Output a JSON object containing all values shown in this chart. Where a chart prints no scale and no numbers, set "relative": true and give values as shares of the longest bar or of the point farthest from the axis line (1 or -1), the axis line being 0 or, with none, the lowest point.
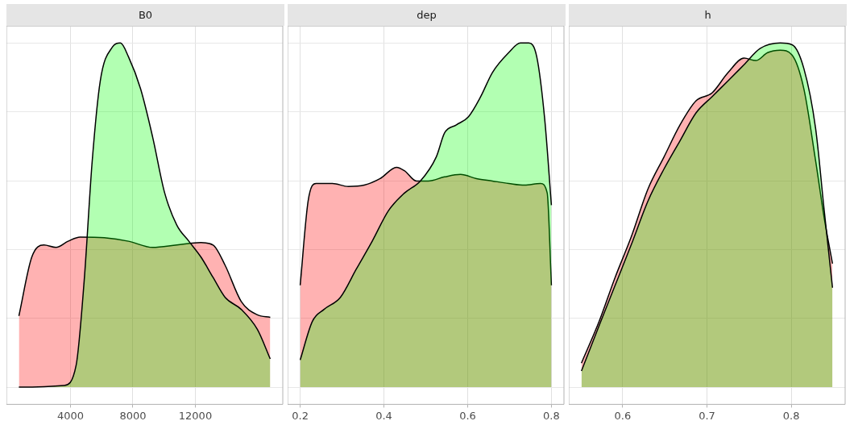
{
  "chart_data": [
    {
      "type": "area",
      "title": "B0",
      "relative": true,
      "xlim": [
        -100,
        17600
      ],
      "xticks": [
        4000,
        8000,
        12000
      ],
      "grid": true,
      "tick_labels": "x",
      "legend": false,
      "series": [
        {
          "color": "#ff0000",
          "x": [
            697,
            1523,
            2297,
            3071,
            3845,
            4619,
            6167,
            7716,
            9263,
            10811,
            12359,
            13133,
            13907,
            14939,
            15971,
            16797
          ],
          "values": [
            0.207,
            0.378,
            0.413,
            0.406,
            0.424,
            0.436,
            0.434,
            0.424,
            0.406,
            0.413,
            0.42,
            0.413,
            0.354,
            0.249,
            0.21,
            0.203
          ]
        },
        {
          "color": "#00ff00",
          "x": [
            697,
            3587,
            4361,
            4877,
            5393,
            5910,
            6683,
            7199,
            7716,
            8490,
            9263,
            10037,
            10811,
            11585,
            12359,
            13133,
            13907,
            14939,
            15971,
            16797
          ],
          "values": [
            0,
            0.005,
            0.063,
            0.308,
            0.657,
            0.89,
            0.988,
            1,
            0.96,
            0.867,
            0.727,
            0.564,
            0.471,
            0.424,
            0.378,
            0.319,
            0.261,
            0.226,
            0.168,
            0.082
          ]
        }
      ]
    },
    {
      "type": "area",
      "title": "dep",
      "relative": true,
      "xlim": [
        0.17,
        0.83
      ],
      "xticks": [
        0.2,
        0.4,
        0.6,
        0.8
      ],
      "grid": true,
      "tick_labels": "x",
      "legend": false,
      "series": [
        {
          "color": "#ff0000",
          "x": [
            0.2,
            0.219,
            0.238,
            0.277,
            0.315,
            0.353,
            0.391,
            0.43,
            0.449,
            0.478,
            0.506,
            0.545,
            0.583,
            0.621,
            0.659,
            0.698,
            0.736,
            0.774,
            0.79,
            0.8
          ],
          "values": [
            0.296,
            0.541,
            0.592,
            0.592,
            0.583,
            0.587,
            0.606,
            0.639,
            0.629,
            0.599,
            0.599,
            0.611,
            0.618,
            0.606,
            0.599,
            0.592,
            0.587,
            0.592,
            0.564,
            0.296
          ]
        },
        {
          "color": "#00ff00",
          "x": [
            0.2,
            0.229,
            0.257,
            0.296,
            0.334,
            0.372,
            0.411,
            0.449,
            0.487,
            0.525,
            0.545,
            0.573,
            0.602,
            0.631,
            0.659,
            0.698,
            0.726,
            0.746,
            0.765,
            0.784,
            0.8
          ],
          "values": [
            0.079,
            0.191,
            0.226,
            0.261,
            0.343,
            0.424,
            0.513,
            0.564,
            0.599,
            0.669,
            0.739,
            0.762,
            0.786,
            0.844,
            0.914,
            0.972,
            1,
            1,
            0.96,
            0.779,
            0.529
          ]
        }
      ]
    },
    {
      "type": "area",
      "title": "h",
      "relative": true,
      "xlim": [
        0.536,
        0.864
      ],
      "xticks": [
        0.6,
        0.7,
        0.8
      ],
      "grid": true,
      "tick_labels": "x",
      "legend": false,
      "series": [
        {
          "color": "#ff0000",
          "x": [
            0.551,
            0.572,
            0.591,
            0.61,
            0.63,
            0.649,
            0.668,
            0.687,
            0.706,
            0.725,
            0.744,
            0.758,
            0.772,
            0.787,
            0.801,
            0.815,
            0.829,
            0.839,
            0.849
          ],
          "values": [
            0.07,
            0.191,
            0.319,
            0.436,
            0.576,
            0.669,
            0.762,
            0.832,
            0.855,
            0.914,
            0.956,
            0.949,
            0.972,
            0.979,
            0.965,
            0.867,
            0.657,
            0.494,
            0.359
          ]
        },
        {
          "color": "#00ff00",
          "x": [
            0.551,
            0.572,
            0.591,
            0.61,
            0.63,
            0.649,
            0.668,
            0.687,
            0.706,
            0.725,
            0.744,
            0.763,
            0.787,
            0.801,
            0.815,
            0.829,
            0.839,
            0.849
          ],
          "values": [
            0.047,
            0.179,
            0.296,
            0.413,
            0.541,
            0.634,
            0.716,
            0.797,
            0.844,
            0.89,
            0.937,
            0.984,
            1,
            0.995,
            0.926,
            0.751,
            0.517,
            0.289
          ]
        }
      ]
    }
  ]
}
